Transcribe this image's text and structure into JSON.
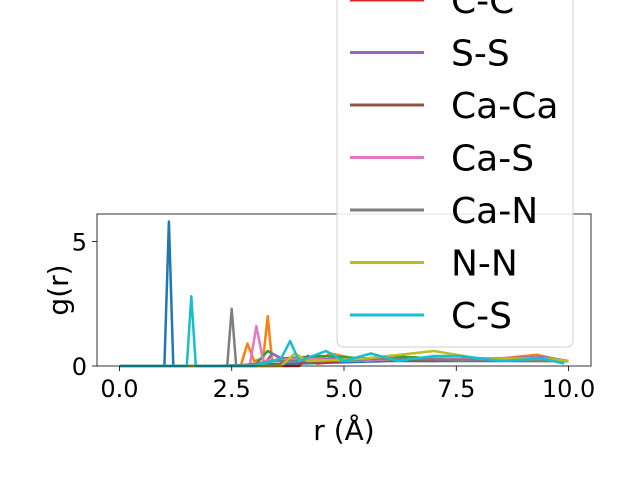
{
  "chart_data": {
    "type": "line",
    "title": "",
    "xlabel": "r (Å)",
    "ylabel": "g(r)",
    "xlim": [
      -0.5,
      10.5
    ],
    "ylim": [
      0,
      6.1
    ],
    "xticks": [
      0.0,
      2.5,
      5.0,
      7.5,
      10.0
    ],
    "xtick_labels": [
      "0.0",
      "2.5",
      "5.0",
      "7.5",
      "10.0"
    ],
    "yticks": [
      0,
      5
    ],
    "ytick_labels": [
      "0",
      "5"
    ],
    "grid": false,
    "legend_position": "upper-right (extends above plot)",
    "series": [
      {
        "name": "",
        "color": "#1f77b4",
        "x": [
          0,
          1.0,
          1.1,
          1.2,
          2,
          4,
          6,
          8,
          10
        ],
        "y": [
          0,
          0,
          5.8,
          0,
          0,
          0.1,
          0.2,
          0.2,
          0.2
        ]
      },
      {
        "name": "",
        "color": "#ff7f0e",
        "x": [
          0,
          2.7,
          2.85,
          3.0,
          3.2,
          3.3,
          3.4,
          4.5,
          4.7,
          5.5,
          6.5,
          7.5,
          8.5,
          9.3,
          9.9
        ],
        "y": [
          0,
          0,
          0.9,
          0.2,
          0.3,
          2.0,
          0.2,
          0.3,
          0.5,
          0.2,
          0.35,
          0.2,
          0.3,
          0.45,
          0.2
        ]
      },
      {
        "name": "",
        "color": "#2ca02c",
        "x": [
          0,
          3.0,
          3.3,
          3.6,
          4.5,
          5.5,
          6.0,
          7.0,
          8.0,
          9.0,
          10
        ],
        "y": [
          0,
          0,
          0.6,
          0.3,
          0.4,
          0.3,
          0.4,
          0.3,
          0.25,
          0.3,
          0.2
        ]
      },
      {
        "name": "C-C",
        "color": "#d62728",
        "x": [
          0,
          4.0,
          4.2,
          4.4,
          5.5,
          7.0,
          8.5,
          10
        ],
        "y": [
          0,
          0,
          0.4,
          0.1,
          0.3,
          0.2,
          0.3,
          0.2
        ]
      },
      {
        "name": "S-S",
        "color": "#9467bd",
        "x": [
          0,
          3.2,
          3.4,
          3.7,
          5.0,
          6.5,
          8.0,
          9.5,
          10
        ],
        "y": [
          0,
          0,
          0.5,
          0.2,
          0.3,
          0.25,
          0.3,
          0.35,
          0.2
        ]
      },
      {
        "name": "Ca-Ca",
        "color": "#8c564b",
        "x": [
          0,
          3.5,
          3.8,
          4.2,
          5.2,
          6.8,
          8.3,
          9.6
        ],
        "y": [
          0,
          0,
          0.3,
          0.15,
          0.25,
          0.2,
          0.25,
          0.2
        ]
      },
      {
        "name": "Ca-S",
        "color": "#e377c2",
        "x": [
          0,
          2.9,
          3.05,
          3.2,
          4.0,
          5.0,
          6.5,
          8.0,
          9.8
        ],
        "y": [
          0,
          0,
          1.6,
          0.2,
          0.3,
          0.2,
          0.3,
          0.25,
          0.2
        ]
      },
      {
        "name": "Ca-N",
        "color": "#7f7f7f",
        "x": [
          0,
          2.4,
          2.5,
          2.6,
          3.5,
          4.5,
          6.0,
          7.5,
          9.0,
          10
        ],
        "y": [
          0,
          0,
          2.3,
          0,
          0.2,
          0.2,
          0.3,
          0.25,
          0.2,
          0.2
        ]
      },
      {
        "name": "N-N",
        "color": "#bcbd22",
        "x": [
          0,
          3.6,
          3.9,
          4.2,
          5.5,
          7.0,
          8.0,
          9.5,
          10
        ],
        "y": [
          0,
          0,
          0.5,
          0.2,
          0.3,
          0.6,
          0.3,
          0.3,
          0.2
        ]
      },
      {
        "name": "C-S",
        "color": "#17becf",
        "x": [
          0,
          1.5,
          1.6,
          1.7,
          3.0,
          3.6,
          3.8,
          4.0,
          4.6,
          5.0,
          5.6,
          6.2,
          7.0,
          7.6,
          8.5,
          9.4,
          9.9
        ],
        "y": [
          0,
          0,
          2.8,
          0,
          0,
          0.3,
          1.0,
          0.2,
          0.6,
          0.2,
          0.5,
          0.2,
          0.4,
          0.4,
          0.2,
          0.3,
          0.1
        ]
      }
    ],
    "legend_entries": [
      "C-C",
      "S-S",
      "Ca-Ca",
      "Ca-S",
      "Ca-N",
      "N-N",
      "C-S"
    ]
  }
}
